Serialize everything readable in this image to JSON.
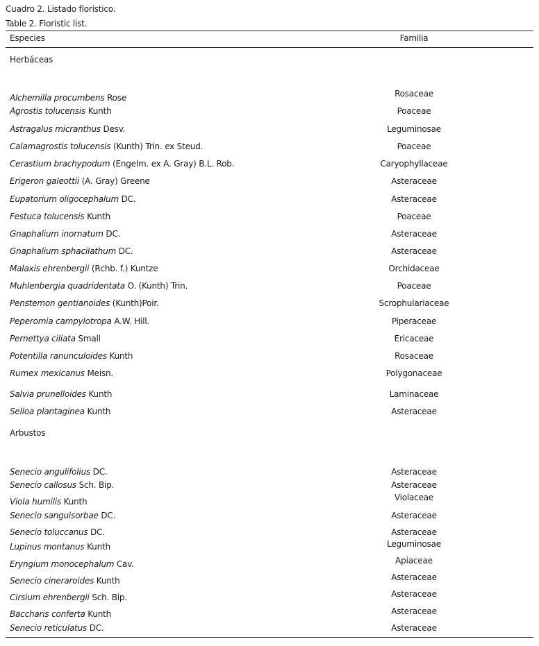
{
  "caption_es": "Cuadro 2. Listado florístico.",
  "caption_en": "Table 2. Floristic list.",
  "header": {
    "species": "Especies",
    "family": "Familia"
  },
  "groups": [
    {
      "label": "Herbáceas",
      "rows": [
        {
          "genus": "Alchemilla procumbens",
          "author": "Rose",
          "family": "Rosaceae"
        },
        {
          "genus": "Agrostis tolucensis",
          "author": "Kunth",
          "family": "Poaceae"
        },
        {
          "genus": "Astragalus micranthus",
          "author": "Desv.",
          "family": "Leguminosae"
        },
        {
          "genus": "Calamagrostis tolucensis",
          "author": "(Kunth) Trin. ex Steud.",
          "family": "Poaceae"
        },
        {
          "genus": "Cerastium brachypodum",
          "author": "(Engelm. ex A. Gray) B.L. Rob.",
          "family": "Caryophyllaceae"
        },
        {
          "genus": "Erigeron galeottii",
          "author": "(A. Gray) Greene",
          "family": "Asteraceae"
        },
        {
          "genus": "Eupatorium oligocephalum",
          "author": "DC.",
          "family": "Asteraceae"
        },
        {
          "genus": "Festuca tolucensis",
          "author": "Kunth",
          "family": "Poaceae"
        },
        {
          "genus": "Gnaphalium inornatum",
          "author": "DC.",
          "family": "Asteraceae"
        },
        {
          "genus": "Gnaphalium sphacilathum",
          "author": "DC.",
          "family": "Asteraceae"
        },
        {
          "genus": "Malaxis ehrenbergii",
          "author": "(Rchb. f.) Kuntze",
          "family": "Orchidaceae"
        },
        {
          "genus": "Muhlenbergia quadridentata",
          "author": "O. (Kunth) Trin.",
          "family": "Poaceae"
        },
        {
          "genus": "Penstemon gentianoides",
          "author": "(Kunth)Poir.",
          "family": "Scrophulariaceae"
        },
        {
          "genus": "Peperomia campylotropa",
          "author": "A.W. Hill.",
          "family": "Piperaceae"
        },
        {
          "genus": "Pernettya ciliata",
          "author": "Small",
          "family": "Ericaceae"
        },
        {
          "genus": "Potentilla ranunculoides",
          "author": "Kunth",
          "family": "Rosaceae"
        },
        {
          "genus": "Rumex mexicanus",
          "author": "Meisn.",
          "family": "Polygonaceae"
        },
        {
          "genus": "Salvia prunelloides",
          "author": "Kunth",
          "family": "Laminaceae"
        },
        {
          "genus": "Selloa plantaginea",
          "author": "Kunth",
          "family": "Asteraceae"
        }
      ]
    },
    {
      "label": "Arbustos",
      "rows": [
        {
          "genus": "Senecio angulifolius",
          "author": "DC.",
          "family": "Asteraceae"
        },
        {
          "genus": "Senecio callosus",
          "author": "Sch. Bip.",
          "family": "Asteraceae"
        },
        {
          "genus": "Viola humilis",
          "author": "Kunth",
          "family": "Violaceae"
        },
        {
          "genus": "Senecio sanguisorbae",
          "author": "DC.",
          "family": "Asteraceae"
        },
        {
          "genus": "Senecio toluccanus",
          "author": "DC.",
          "family": "Asteraceae"
        },
        {
          "genus": "Lupinus montanus",
          "author": "Kunth",
          "family": "Leguminosae"
        },
        {
          "genus": "Eryngium monocephalum",
          "author": "Cav.",
          "family": "Apiaceae"
        },
        {
          "genus": "Senecio cineraroides",
          "author": "Kunth",
          "family": "Asteraceae"
        },
        {
          "genus": "Cirsium ehrenbergii",
          "author": "Sch. Bip.",
          "family": "Asteraceae"
        },
        {
          "genus": "Baccharis conferta",
          "author": "Kunth",
          "family": "Asteraceae"
        },
        {
          "genus": "Senecio reticulatus",
          "author": "DC.",
          "family": "Asteraceae"
        }
      ]
    }
  ]
}
